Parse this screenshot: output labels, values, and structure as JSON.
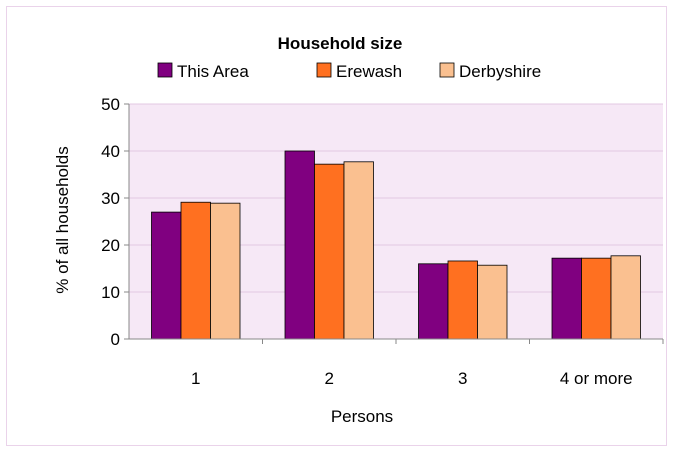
{
  "chart_data": {
    "type": "bar",
    "title": "Household size",
    "xlabel": "Persons",
    "ylabel": "% of all households",
    "categories": [
      "1",
      "2",
      "3",
      "4 or more"
    ],
    "series": [
      {
        "name": "This Area",
        "values": [
          27,
          40,
          16,
          17.2
        ],
        "color": "#800080"
      },
      {
        "name": "Erewash",
        "values": [
          29.1,
          37.2,
          16.6,
          17.2
        ],
        "color": "#ff7020"
      },
      {
        "name": "Derbyshire",
        "values": [
          28.9,
          37.7,
          15.7,
          17.7
        ],
        "color": "#fac090"
      }
    ],
    "ylim": [
      0,
      50
    ],
    "yticks": [
      0,
      10,
      20,
      30,
      40,
      50
    ],
    "grid": true,
    "legend_position": "top",
    "plot_background": "#f6e8f6",
    "grid_color": "#e3c9e3"
  }
}
